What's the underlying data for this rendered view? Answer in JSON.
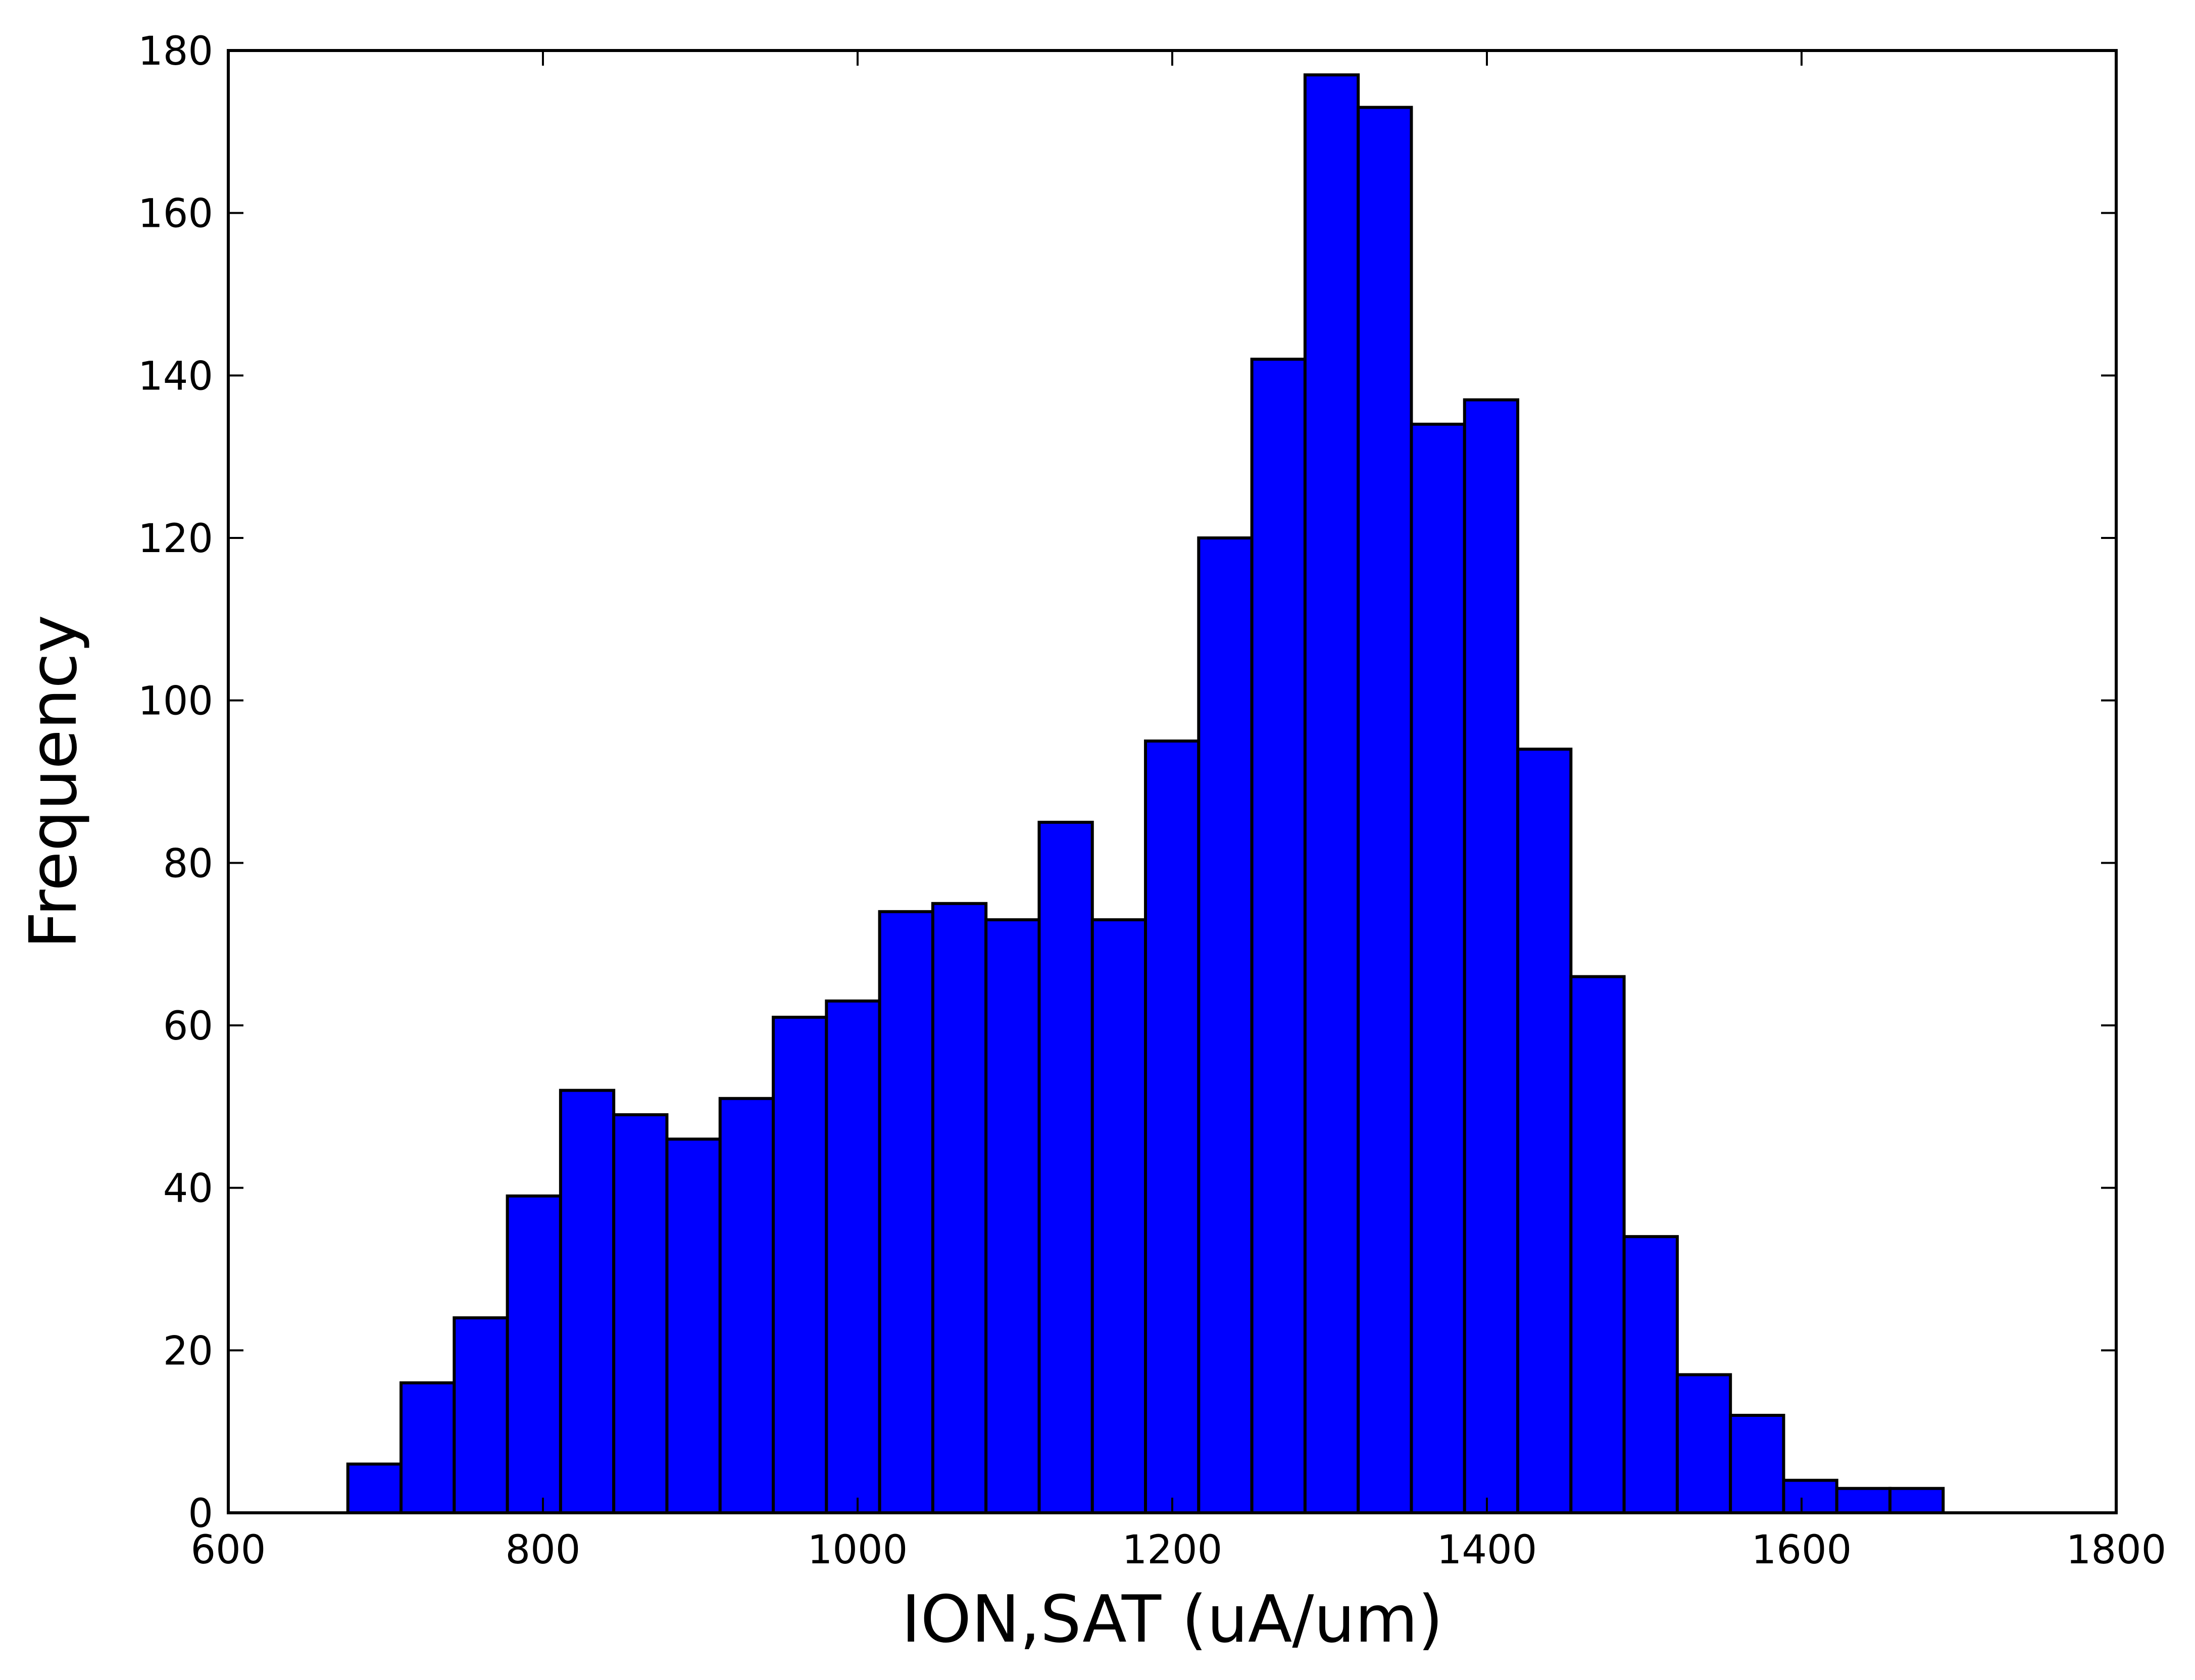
{
  "chart_data": {
    "type": "bar",
    "subtype": "histogram",
    "title": "",
    "xlabel": "ION,SAT (uA/um)",
    "ylabel": "Frequency",
    "xlim": [
      600,
      1800
    ],
    "ylim": [
      0,
      180
    ],
    "xticks": [
      600,
      800,
      1000,
      1200,
      1400,
      1600,
      1800
    ],
    "yticks": [
      0,
      20,
      40,
      60,
      80,
      100,
      120,
      140,
      160,
      180
    ],
    "bin_start": 676,
    "bin_width": 33.8,
    "values": [
      6,
      16,
      24,
      39,
      52,
      49,
      46,
      51,
      61,
      63,
      74,
      75,
      73,
      85,
      73,
      95,
      120,
      142,
      177,
      173,
      134,
      137,
      94,
      66,
      34,
      17,
      12,
      4,
      3,
      3
    ],
    "bar_color": "#0000ff",
    "edge_color": "#000000",
    "grid": false,
    "legend": "none"
  }
}
